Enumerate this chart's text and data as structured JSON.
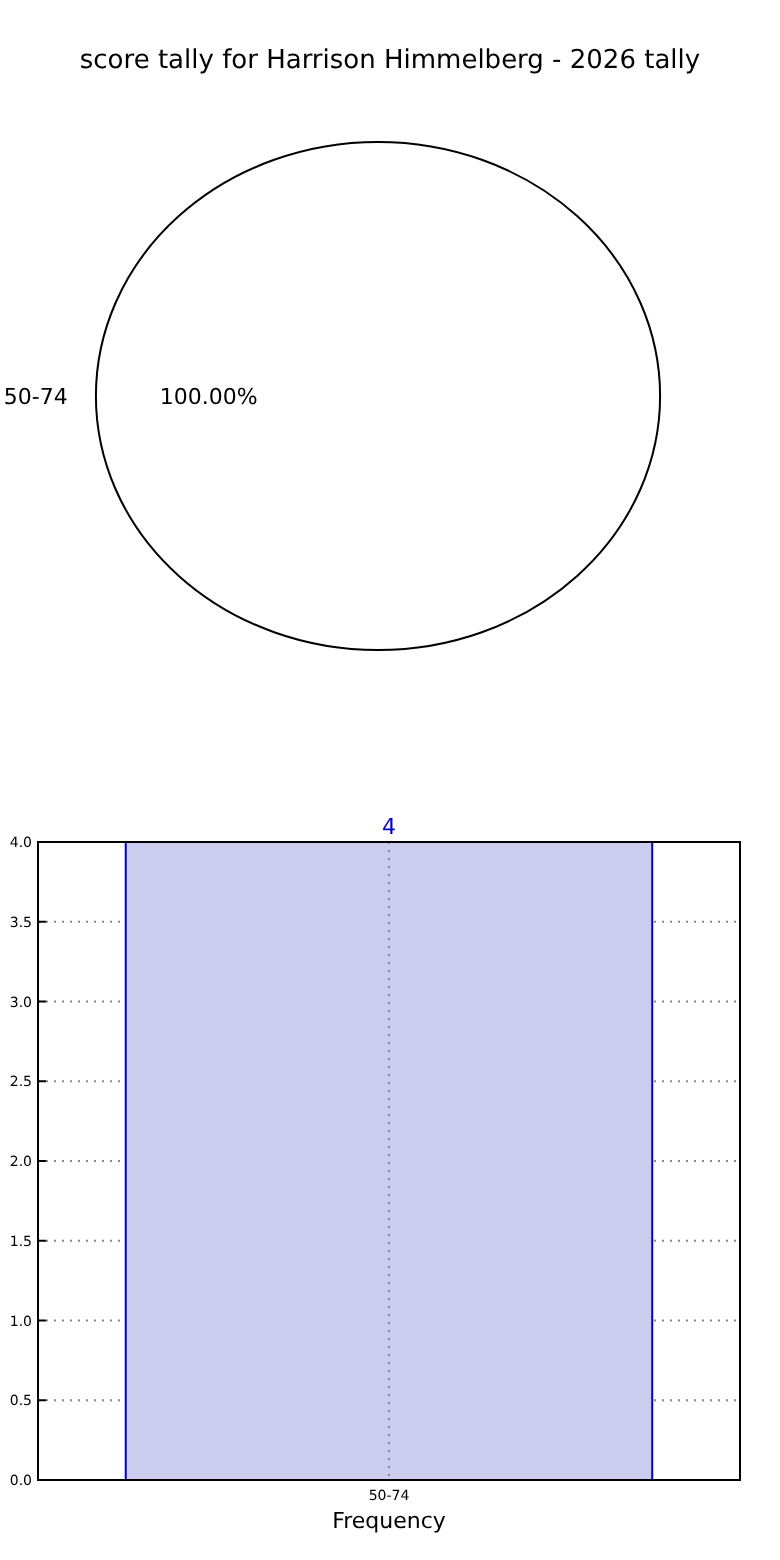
{
  "chart_data": [
    {
      "type": "pie",
      "title": "score tally for Harrison Himmelberg - 2026 tally",
      "categories": [
        "50-74"
      ],
      "values": [
        100
      ],
      "value_labels": [
        "100.00%"
      ],
      "colors": [
        "#ffffff"
      ]
    },
    {
      "type": "bar",
      "xlabel": "Frequency",
      "categories": [
        "50-74"
      ],
      "values": [
        4
      ],
      "color": "#ccccee",
      "data_labels": true,
      "grid": true,
      "ylim": [
        0,
        4
      ],
      "yticks": [
        {
          "value": 0,
          "label": "0.0"
        },
        {
          "value": 0.5,
          "label": "0.5"
        },
        {
          "value": 1,
          "label": "1.0"
        },
        {
          "value": 1.5,
          "label": "1.5"
        },
        {
          "value": 2,
          "label": "2.0"
        },
        {
          "value": 2.5,
          "label": "2.5"
        },
        {
          "value": 3,
          "label": "3.0"
        },
        {
          "value": 3.5,
          "label": "3.5"
        },
        {
          "value": 4,
          "label": "4.0"
        }
      ]
    }
  ]
}
